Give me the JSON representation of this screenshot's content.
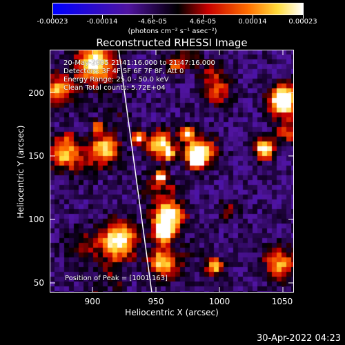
{
  "colorbar": {
    "tick_labels": [
      "-0.00023",
      "-0.00014",
      "-4.6e-05",
      "4.6e-05",
      "0.00014",
      "0.00023"
    ],
    "units": "(photons cm⁻² s⁻¹ asec⁻²)"
  },
  "title": "Reconstructed RHESSI Image",
  "annotations": {
    "time_range": "20-May-2005 21:41:16.000 to 21:47:16.000",
    "detectors": "Detectors: 3F 4F 5F 6F 7F 8F, Att 0",
    "energy_range": "Energy Range: 25.0 - 50.0 keV",
    "clean": "Clean    Total counts: 5.72E+04",
    "peak": "Position of Peak = [1001,163]"
  },
  "axes": {
    "xlabel": "Heliocentric X (arcsec)",
    "ylabel": "Heliocentric Y (arcsec)",
    "xticks": [
      "900",
      "950",
      "1000",
      "1050"
    ],
    "yticks": [
      "50",
      "100",
      "150",
      "200"
    ],
    "xlim": [
      866,
      1060
    ],
    "ylim": [
      43,
      236
    ]
  },
  "timestamp": "30-Apr-2022 04:23",
  "colors": {
    "background": "#000000",
    "foreground": "#ffffff"
  }
}
